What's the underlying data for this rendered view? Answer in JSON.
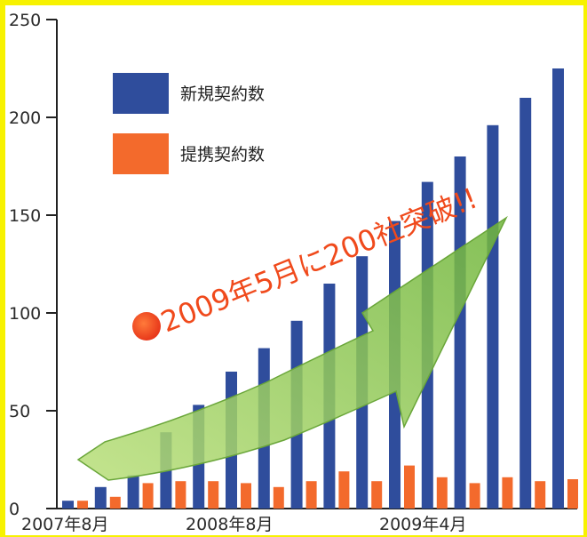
{
  "chart_data": {
    "type": "bar",
    "title": "",
    "xlabel": "",
    "ylabel": "",
    "ylim": [
      0,
      250
    ],
    "yticks": [
      0,
      50,
      100,
      150,
      200,
      250
    ],
    "grid": false,
    "legend_position": "top-left",
    "x_tick_labels": [
      "2007年8月",
      "2008年8月",
      "2009年4月"
    ],
    "series": [
      {
        "name": "新規契約数",
        "color": "#2f4d9c",
        "values": [
          4,
          11,
          17,
          39,
          53,
          70,
          82,
          96,
          115,
          129,
          147,
          167,
          180,
          196,
          210,
          225
        ]
      },
      {
        "name": "提携契約数",
        "color": "#f36a2c",
        "values": [
          4,
          6,
          13,
          14,
          14,
          13,
          11,
          14,
          19,
          14,
          22,
          16,
          13,
          16,
          14,
          15
        ]
      }
    ],
    "annotation": {
      "text": "2009年5月に200社突破!!",
      "color": "#f04a1c",
      "marker": "orange-dot",
      "arrow_color": "#8ec63f"
    }
  }
}
